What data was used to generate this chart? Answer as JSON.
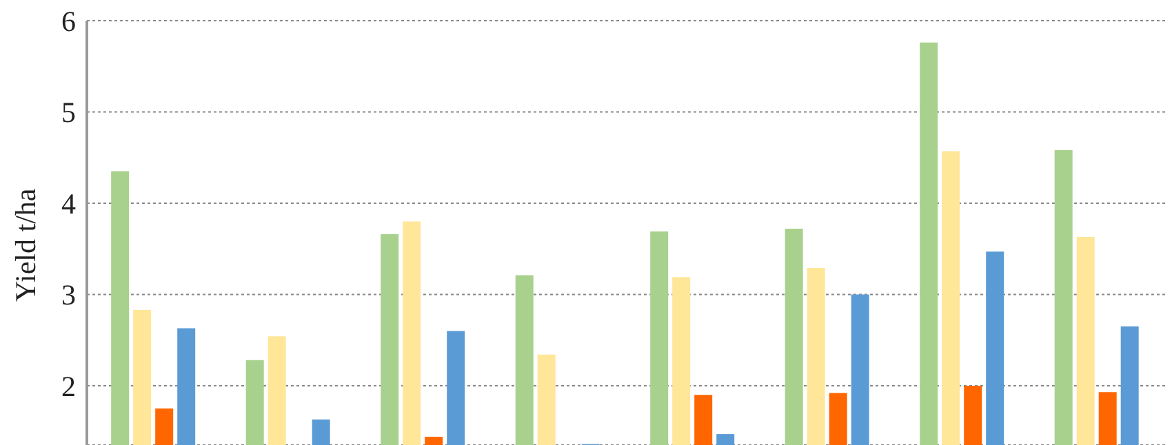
{
  "chart_data": {
    "type": "bar",
    "ylabel": "Yield t/ha",
    "categories": [
      null,
      null,
      null,
      null,
      null,
      null,
      null,
      null
    ],
    "series": [
      {
        "color": "#a9d18e",
        "values": [
          4.35,
          2.28,
          3.66,
          3.21,
          3.69,
          3.72,
          5.76,
          4.58
        ]
      },
      {
        "color": "#ffe699",
        "values": [
          2.83,
          2.54,
          3.8,
          2.34,
          3.19,
          3.29,
          4.57,
          3.63
        ]
      },
      {
        "color": "#ff6600",
        "values": [
          1.75,
          null,
          1.44,
          null,
          1.9,
          1.92,
          2.0,
          1.93
        ]
      },
      {
        "color": "#5b9bd5",
        "values": [
          2.63,
          1.63,
          2.6,
          1.36,
          1.47,
          3.0,
          3.47,
          2.65
        ]
      }
    ],
    "ylim": [
      1.35,
      6
    ],
    "yticks": [
      2,
      3,
      4,
      5,
      6
    ],
    "grid": "y",
    "tick_labels": "y",
    "legend": false
  }
}
